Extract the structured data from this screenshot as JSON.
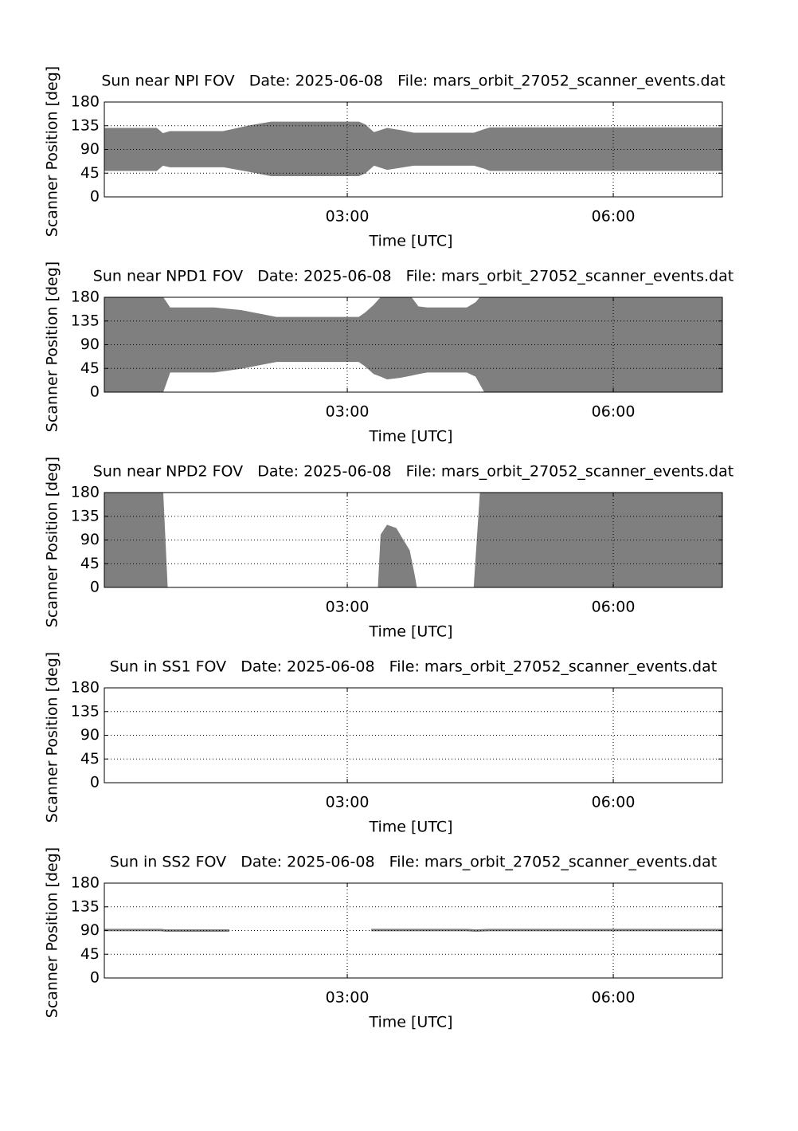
{
  "chart_data": [
    {
      "type": "band",
      "title": "Sun near NPI FOV   Date: 2025-06-08   File: mars_orbit_27052_scanner_events.dat",
      "xlabel": "Time [UTC]",
      "ylabel": "Scanner Position [deg]",
      "color": "#7f7f7f",
      "grid": true,
      "xlim": [
        0.26,
        7.23
      ],
      "ylim": [
        0,
        180
      ],
      "yticks": [
        0,
        45,
        90,
        135,
        180
      ],
      "xticks": [
        {
          "value": 3,
          "label": "03:00"
        },
        {
          "value": 6,
          "label": "06:00"
        }
      ],
      "x": [
        0.26,
        0.85,
        0.92,
        1.0,
        1.6,
        1.9,
        2.14,
        3.13,
        3.2,
        3.3,
        3.45,
        3.6,
        3.75,
        4.43,
        4.55,
        4.61,
        7.23
      ],
      "upper": [
        130,
        130,
        120,
        124,
        124,
        135,
        142,
        142,
        137,
        122,
        130,
        126,
        121,
        121,
        128,
        131,
        131
      ],
      "lower": [
        50,
        50,
        60,
        57,
        57,
        48,
        40,
        40,
        45,
        60,
        52,
        56,
        60,
        60,
        54,
        50,
        50
      ]
    },
    {
      "type": "band",
      "title": "Sun near NPD1 FOV   Date: 2025-06-08   File: mars_orbit_27052_scanner_events.dat",
      "xlabel": "Time [UTC]",
      "ylabel": "Scanner Position [deg]",
      "color": "#7f7f7f",
      "grid": true,
      "xlim": [
        0.26,
        7.23
      ],
      "ylim": [
        0,
        180
      ],
      "yticks": [
        0,
        45,
        90,
        135,
        180
      ],
      "xticks": [
        {
          "value": 3,
          "label": "03:00"
        },
        {
          "value": 6,
          "label": "06:00"
        }
      ],
      "x": [
        0.26,
        0.92,
        1.0,
        1.5,
        1.8,
        2.2,
        3.13,
        3.2,
        3.3,
        3.38,
        3.45,
        3.6,
        3.72,
        3.8,
        3.9,
        4.35,
        4.45,
        4.5,
        4.55,
        7.23
      ],
      "upper": [
        180,
        180,
        160,
        160,
        155,
        142,
        142,
        150,
        165,
        180,
        180,
        180,
        180,
        162,
        160,
        160,
        170,
        180,
        180,
        180
      ],
      "lower": [
        0,
        0,
        38,
        38,
        45,
        58,
        58,
        50,
        35,
        30,
        25,
        28,
        32,
        35,
        38,
        38,
        30,
        15,
        0,
        0
      ]
    },
    {
      "type": "band",
      "title": "Sun near NPD2 FOV   Date: 2025-06-08   File: mars_orbit_27052_scanner_events.dat",
      "xlabel": "Time [UTC]",
      "ylabel": "Scanner Position [deg]",
      "color": "#7f7f7f",
      "grid": true,
      "xlim": [
        0.26,
        7.23
      ],
      "ylim": [
        0,
        180
      ],
      "yticks": [
        0,
        45,
        90,
        135,
        180
      ],
      "xticks": [
        {
          "value": 3,
          "label": "03:00"
        },
        {
          "value": 6,
          "label": "06:00"
        }
      ],
      "x": [
        0.26,
        0.92,
        0.97,
        1.5,
        3.35,
        3.38,
        3.45,
        3.55,
        3.7,
        3.76,
        3.78,
        4.0,
        4.43,
        4.5,
        7.23
      ],
      "upper": [
        180,
        180,
        0,
        null,
        0,
        100,
        118,
        112,
        70,
        20,
        0,
        null,
        0,
        180,
        180
      ],
      "lower": [
        0,
        0,
        0,
        null,
        0,
        0,
        0,
        0,
        0,
        0,
        0,
        null,
        0,
        0,
        0
      ]
    },
    {
      "type": "band",
      "title": "Sun in SS1 FOV   Date: 2025-06-08   File: mars_orbit_27052_scanner_events.dat",
      "xlabel": "Time [UTC]",
      "ylabel": "Scanner Position [deg]",
      "color": "#7f7f7f",
      "grid": true,
      "xlim": [
        0.26,
        7.23
      ],
      "ylim": [
        0,
        180
      ],
      "yticks": [
        0,
        45,
        90,
        135,
        180
      ],
      "xticks": [
        {
          "value": 3,
          "label": "03:00"
        },
        {
          "value": 6,
          "label": "06:00"
        }
      ],
      "x": [],
      "upper": [],
      "lower": []
    },
    {
      "type": "line",
      "title": "Sun in SS2 FOV   Date: 2025-06-08   File: mars_orbit_27052_scanner_events.dat",
      "xlabel": "Time [UTC]",
      "ylabel": "Scanner Position [deg]",
      "color": "#7f7f7f",
      "grid": true,
      "xlim": [
        0.26,
        7.23
      ],
      "ylim": [
        0,
        180
      ],
      "yticks": [
        0,
        45,
        90,
        135,
        180
      ],
      "xticks": [
        {
          "value": 3,
          "label": "03:00"
        },
        {
          "value": 6,
          "label": "06:00"
        }
      ],
      "x": [
        0.26,
        0.9,
        0.95,
        1.67,
        2.5,
        3.27,
        4.35,
        4.45,
        4.6,
        7.23
      ],
      "values": [
        91,
        91,
        90,
        90,
        null,
        91,
        91,
        90,
        91,
        91
      ]
    }
  ]
}
